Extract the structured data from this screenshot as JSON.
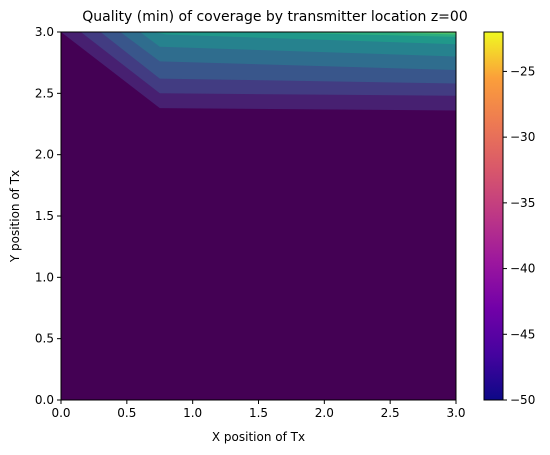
{
  "chart_data": {
    "type": "heatmap",
    "subtype": "filled-contour",
    "title": "Quality (min) of coverage by transmitter location z=00",
    "xlabel": "X position of Tx",
    "ylabel": "Y position of Tx",
    "xlim": [
      0,
      3
    ],
    "ylim": [
      0,
      3
    ],
    "x_ticks": [
      "0.0",
      "0.5",
      "1.0",
      "1.5",
      "2.0",
      "2.5",
      "3.0"
    ],
    "y_ticks": [
      "0.0",
      "0.5",
      "1.0",
      "1.5",
      "2.0",
      "2.5",
      "3.0"
    ],
    "background_level": -47.5,
    "levels": [
      -47.5,
      -45.0,
      -42.5,
      -40.0,
      -37.5,
      -35.0,
      -32.5,
      -30.0,
      -27.5,
      -25.0,
      -22.5
    ],
    "contour_boundaries": [
      {
        "level": -45.0,
        "points": [
          [
            0.0,
            3.0
          ],
          [
            0.75,
            2.38
          ],
          [
            3.0,
            2.36
          ]
        ]
      },
      {
        "level": -42.5,
        "points": [
          [
            0.15,
            3.0
          ],
          [
            0.75,
            2.5
          ],
          [
            3.0,
            2.48
          ]
        ]
      },
      {
        "level": -40.0,
        "points": [
          [
            0.3,
            3.0
          ],
          [
            0.75,
            2.62
          ],
          [
            3.0,
            2.58
          ]
        ]
      },
      {
        "level": -37.5,
        "points": [
          [
            0.45,
            3.0
          ],
          [
            0.75,
            2.76
          ],
          [
            3.0,
            2.69
          ]
        ]
      },
      {
        "level": -35.0,
        "points": [
          [
            0.6,
            3.0
          ],
          [
            0.75,
            2.88
          ],
          [
            3.0,
            2.8
          ]
        ]
      },
      {
        "level": -32.5,
        "points": [
          [
            0.7,
            3.0
          ],
          [
            0.8,
            2.98
          ],
          [
            3.0,
            2.9
          ]
        ]
      },
      {
        "level": -30.0,
        "points": [
          [
            1.5,
            3.0
          ],
          [
            3.0,
            2.96
          ]
        ]
      },
      {
        "level": -27.5,
        "points": [
          [
            2.4,
            3.0
          ],
          [
            3.0,
            2.98
          ]
        ]
      }
    ],
    "colorbar": {
      "colormap": "plasma",
      "range": [
        -50,
        -22
      ],
      "ticks": [
        "-50",
        "-45",
        "-40",
        "-35",
        "-30",
        "-25"
      ],
      "tick_values": [
        -50,
        -45,
        -40,
        -35,
        -30,
        -25
      ]
    }
  }
}
